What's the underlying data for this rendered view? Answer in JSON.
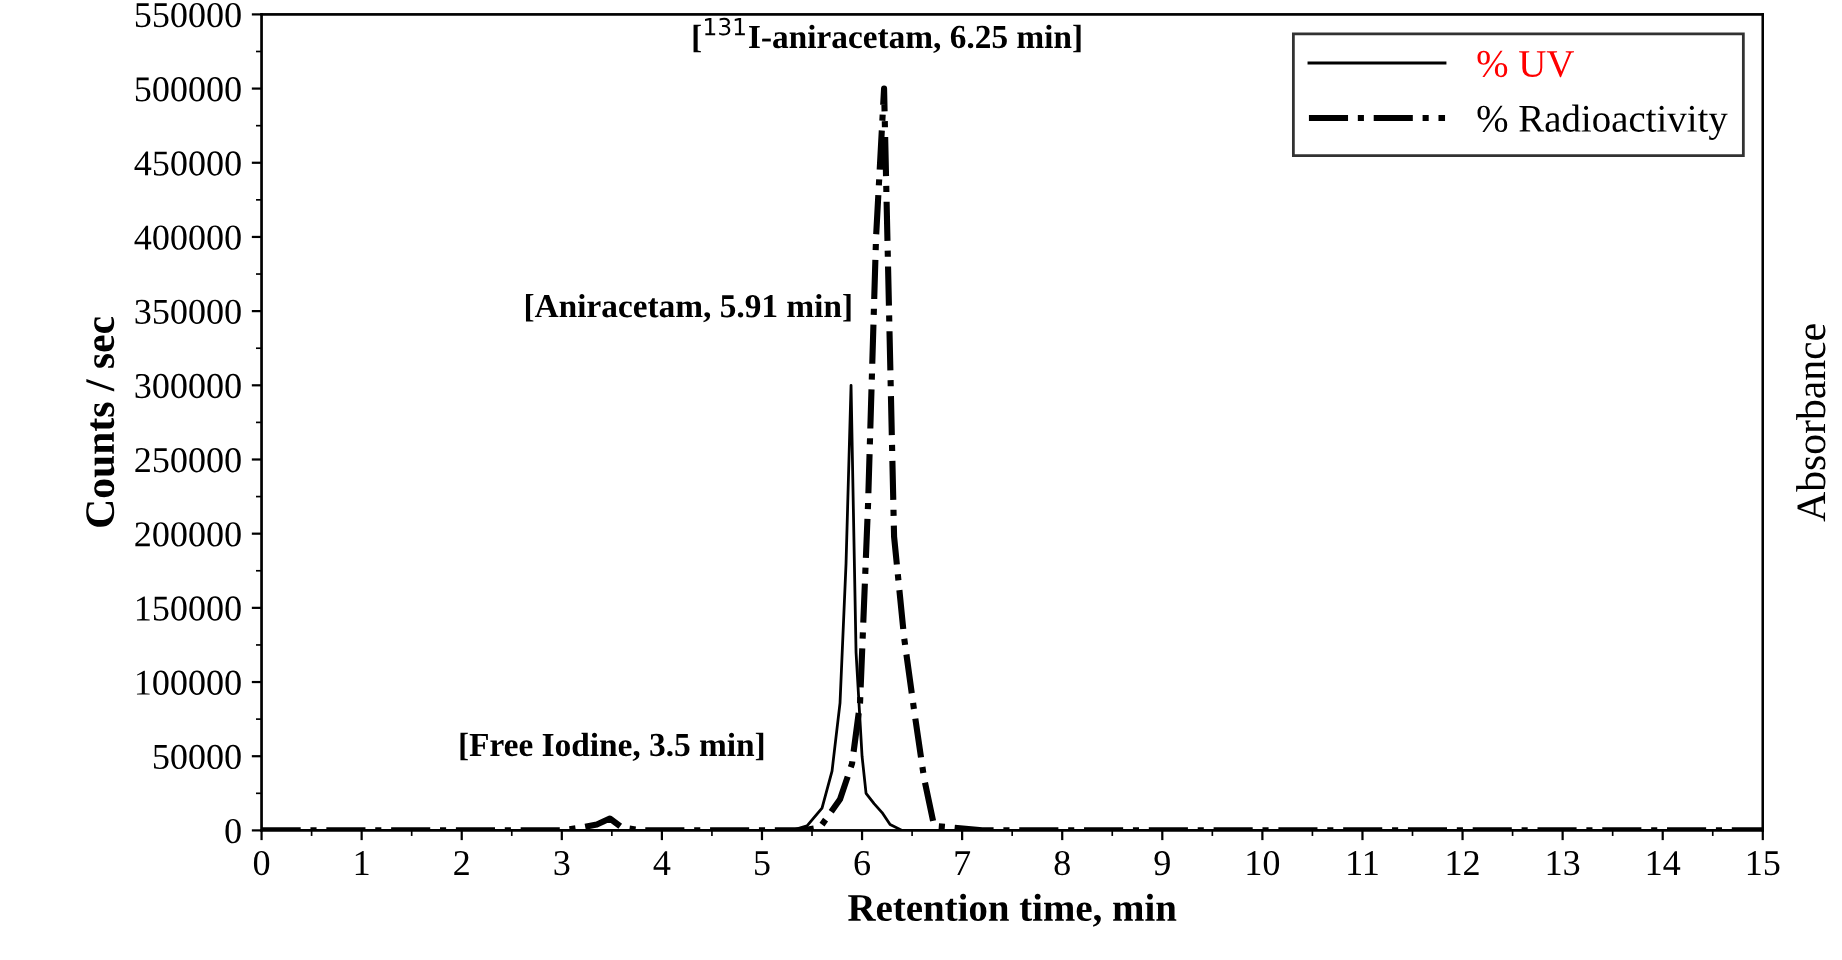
{
  "chart_data": {
    "type": "line",
    "xlabel": "Retention time, min",
    "ylabel": "Counts / sec",
    "y2label": "Absorbance",
    "xlim": [
      0,
      15
    ],
    "xticks": [
      0,
      1,
      2,
      3,
      4,
      5,
      6,
      7,
      8,
      9,
      10,
      11,
      12,
      13,
      14,
      15
    ],
    "ylim": [
      0,
      550000
    ],
    "yticks": [
      0,
      50000,
      100000,
      150000,
      200000,
      250000,
      300000,
      350000,
      400000,
      450000,
      500000,
      550000
    ],
    "legend": "top right",
    "grid": false,
    "series": [
      {
        "name": "% UV",
        "color": "#000000",
        "line_style": "solid",
        "x": [
          0,
          5.3,
          5.45,
          5.6,
          5.7,
          5.78,
          5.84,
          5.89,
          5.94,
          6.0,
          6.04,
          6.12,
          6.2,
          6.28,
          6.4,
          7,
          15
        ],
        "values": [
          0,
          0,
          3000,
          15000,
          40000,
          86000,
          180000,
          300000,
          120000,
          50000,
          25000,
          18000,
          12000,
          4000,
          0,
          0,
          0
        ]
      },
      {
        "name": "% Radioactivity",
        "color": "#000000",
        "line_style": "dashdot",
        "x": [
          0,
          3.0,
          3.2,
          3.35,
          3.48,
          3.6,
          3.8,
          5.4,
          5.58,
          5.78,
          5.9,
          5.98,
          6.06,
          6.14,
          6.22,
          6.32,
          6.42,
          6.52,
          6.62,
          6.72,
          6.9,
          7.2,
          15
        ],
        "values": [
          0,
          0,
          2000,
          4000,
          8000,
          2000,
          0,
          0,
          2000,
          21000,
          45000,
          86000,
          220000,
          400000,
          500000,
          198000,
          130000,
          81000,
          35000,
          3000,
          2000,
          0,
          0
        ]
      }
    ],
    "annotations": [
      {
        "text": "[Free Iodine, 3.5 min]",
        "x": 3.5,
        "y": 8000
      },
      {
        "text": "[Aniracetam, 5.91 min]",
        "x": 5.91,
        "y": 300000
      },
      {
        "text": "[$^{131}$I-aniracetam, 6.25 min]",
        "x": 6.25,
        "y": 500000
      }
    ]
  }
}
